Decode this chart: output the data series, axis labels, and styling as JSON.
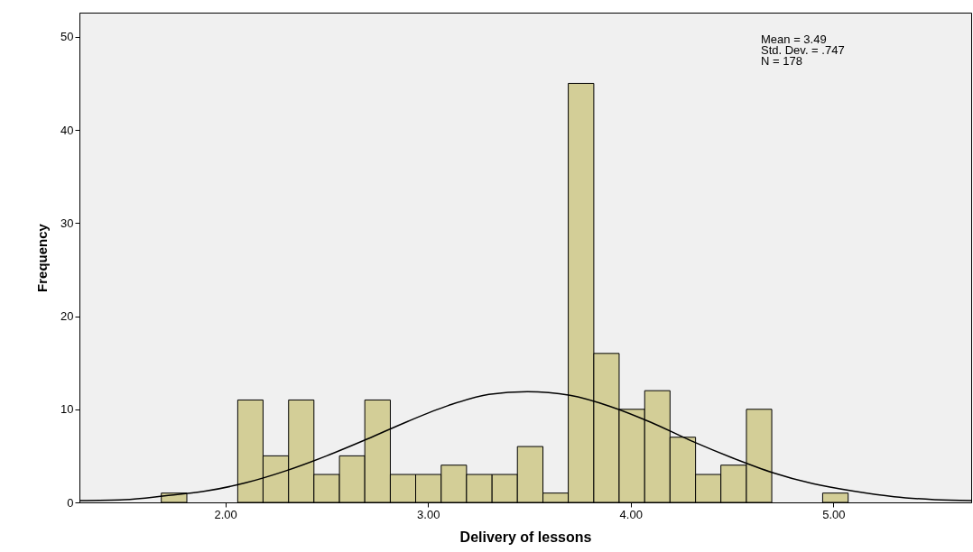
{
  "chart_data": {
    "type": "histogram",
    "xlabel": "Delivery of lessons",
    "ylabel": "Frequency",
    "bins": [
      1.684,
      1.81,
      1.935,
      2.061,
      2.186,
      2.312,
      2.437,
      2.563,
      2.688,
      2.814,
      2.939,
      3.065,
      3.19,
      3.316,
      3.441,
      3.567,
      3.692,
      3.818,
      3.943,
      4.069,
      4.194,
      4.32,
      4.445,
      4.571,
      4.696,
      4.822,
      4.947,
      5.073
    ],
    "series": [
      {
        "color": "#d3ce97",
        "values": [
          1,
          0,
          0,
          11,
          5,
          11,
          3,
          5,
          11,
          3,
          3,
          4,
          3,
          3,
          6,
          1,
          45,
          16,
          10,
          12,
          7,
          3,
          4,
          10,
          0,
          0,
          1
        ]
      },
      {
        "type": "line",
        "color": "#000000",
        "x": [
          1.28,
          1.5,
          1.7,
          1.9,
          2.1,
          2.3,
          2.5,
          2.7,
          2.9,
          3.1,
          3.3,
          3.49,
          3.7,
          3.9,
          4.1,
          4.3,
          4.5,
          4.7,
          4.9,
          5.1,
          5.3,
          5.5,
          5.68
        ],
        "values": [
          0.2,
          0.3,
          0.7,
          1.2,
          2.1,
          3.4,
          5.0,
          6.8,
          8.7,
          10.4,
          11.6,
          11.9,
          11.5,
          10.3,
          8.6,
          6.6,
          4.8,
          3.2,
          2.0,
          1.2,
          0.6,
          0.3,
          0.2
        ]
      }
    ],
    "xlim": [
      1.28,
      5.68
    ],
    "ylim": [
      0,
      52.6
    ],
    "xticks": [
      {
        "value": 2,
        "label": "2.00"
      },
      {
        "value": 3,
        "label": "3.00"
      },
      {
        "value": 4,
        "label": "4.00"
      },
      {
        "value": 5,
        "label": "5.00"
      }
    ],
    "yticks": [
      0,
      10,
      20,
      30,
      40,
      50
    ],
    "annotations": [
      "Mean = 3.49",
      "Std. Dev. = .747",
      "N = 178"
    ]
  }
}
